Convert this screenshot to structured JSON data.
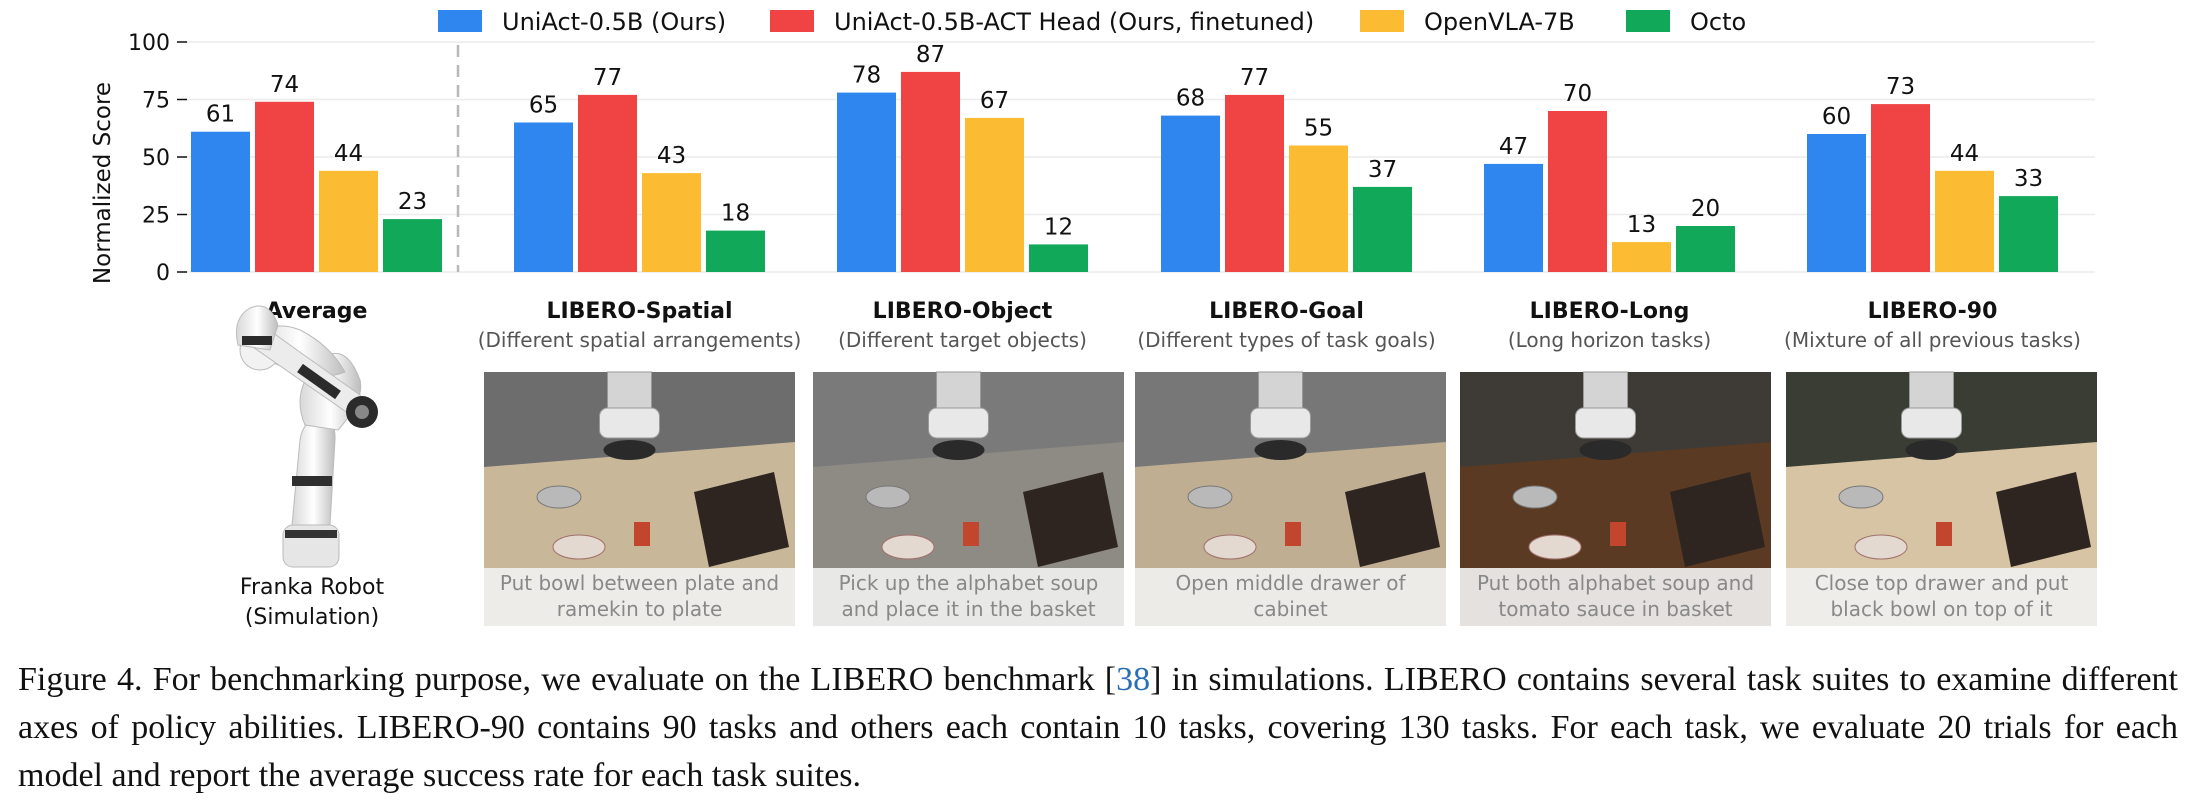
{
  "chart_data": {
    "type": "bar",
    "categories": [
      "Average",
      "LIBERO-Spatial",
      "LIBERO-Object",
      "LIBERO-Goal",
      "LIBERO-Long",
      "LIBERO-90"
    ],
    "subtitles": [
      "",
      "(Different spatial arrangements)",
      "(Different target objects)",
      "(Different types of task goals)",
      "(Long horizon tasks)",
      "(Mixture of all previous tasks)"
    ],
    "series": [
      {
        "name": "UniAct-0.5B (Ours)",
        "color": "#2f86ee",
        "values": [
          61,
          65,
          78,
          68,
          47,
          60
        ]
      },
      {
        "name": "UniAct-0.5B-ACT Head (Ours, finetuned)",
        "color": "#f04343",
        "values": [
          74,
          77,
          87,
          77,
          70,
          73
        ]
      },
      {
        "name": "OpenVLA-7B",
        "color": "#fbbc34",
        "values": [
          44,
          43,
          67,
          55,
          13,
          44
        ]
      },
      {
        "name": "Octo",
        "color": "#12a85a",
        "values": [
          23,
          18,
          12,
          37,
          20,
          33
        ]
      }
    ],
    "ylabel": "Normalized Score",
    "xlabel": "",
    "yticks": [
      0,
      25,
      50,
      75,
      100
    ],
    "ylim": [
      0,
      100
    ],
    "grid": true,
    "legend": "top"
  },
  "robot": {
    "name": "Franka Robot",
    "sub": "(Simulation)"
  },
  "tasks": [
    {
      "line1": "Put bowl between plate and",
      "line2": "ramekin to plate"
    },
    {
      "line1": "Pick up the alphabet soup",
      "line2": "and place it in the basket"
    },
    {
      "line1": "Open middle drawer of",
      "line2": "cabinet"
    },
    {
      "line1": "Put both alphabet soup and",
      "line2": "tomato sauce in basket"
    },
    {
      "line1": "Close top drawer and put",
      "line2": "black bowl on top of it"
    }
  ],
  "caption": {
    "before_ref": "Figure 4. For benchmarking purpose, we evaluate on the LIBERO benchmark [",
    "ref": "38",
    "after_ref": "] in simulations. LIBERO contains several task suites to examine different axes of policy abilities. LIBERO-90 contains 90 tasks and others each contain 10 tasks, covering 130 tasks. For each task, we evaluate 20 trials for each model and report the average success rate for each task suites."
  }
}
